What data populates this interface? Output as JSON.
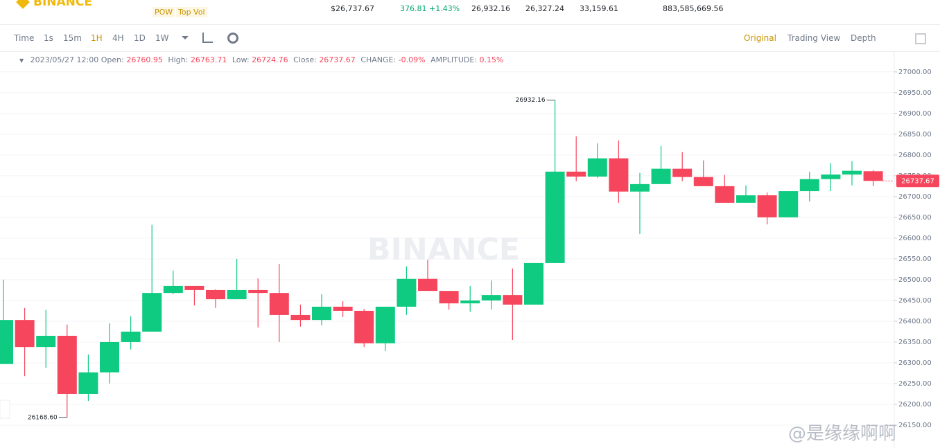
{
  "header": {
    "logo": "BINANCE",
    "tags": [
      "POW",
      "Top Vol"
    ],
    "stats": [
      "$26,737.67",
      "376.81 +1.43%",
      "26,932.16",
      "26,327.24",
      "33,159.61",
      "883,585,669.56"
    ]
  },
  "toolbar": {
    "intervals": [
      "Time",
      "1s",
      "15m",
      "1H",
      "4H",
      "1D",
      "1W"
    ],
    "views": [
      "Original",
      "Trading View",
      "Depth"
    ]
  },
  "legend": {
    "time": "2023/05/27 12:00",
    "labels": [
      "Open:",
      "High:",
      "Low:",
      "Close:",
      "CHANGE:",
      "AMPLITUDE:"
    ],
    "change": "-0.09%",
    "amplitude": "0.15%"
  },
  "watermark": "BINANCE",
  "credit": "@是缘缘啊啊",
  "chart_data": {
    "type": "candlestick",
    "categories": [
      null,
      null,
      null,
      null,
      null,
      null,
      null,
      null,
      null,
      null,
      null,
      null,
      null,
      null,
      null,
      null,
      null,
      null,
      null,
      null,
      null,
      null,
      null,
      null,
      null,
      null,
      null,
      null,
      null,
      null,
      null,
      null,
      null,
      null,
      null,
      null,
      null,
      null,
      null,
      null,
      null,
      null
    ],
    "open": [
      26297,
      26403,
      26338,
      26365,
      26225,
      26277,
      26350,
      26375,
      26468,
      26485,
      26475,
      26453,
      26475,
      26468,
      26415,
      26403,
      26435,
      26425,
      26347,
      26435,
      26502,
      26473,
      26443,
      26450,
      26463,
      26440,
      26540,
      26760,
      26748,
      26792,
      26712,
      26730,
      26767,
      26747,
      26725,
      26685,
      26703,
      26650,
      26713,
      26742,
      26753,
      26760.95
    ],
    "high": [
      26500,
      26432,
      26427,
      26392,
      26320,
      26395,
      26412,
      26632,
      26522,
      26485,
      26477,
      26550,
      26503,
      26538,
      26440,
      26465,
      26448,
      26430,
      26435,
      26532,
      26548,
      26473,
      26485,
      26498,
      26527,
      26540,
      26932.16,
      26845,
      26828,
      26835,
      26757,
      26822,
      26807,
      26787,
      26752,
      26727,
      26710,
      26713,
      26760,
      26780,
      26785,
      26763.71
    ],
    "low": [
      26297,
      26268,
      26288,
      26168.6,
      26208,
      26250,
      26332,
      26375,
      26465,
      26438,
      26432,
      26453,
      26385,
      26350,
      26387,
      26390,
      26410,
      26338,
      26328,
      26415,
      26473,
      26428,
      26423,
      26428,
      26355,
      26440,
      26540,
      26737,
      26745,
      26685,
      26610,
      26730,
      26737,
      26725,
      26685,
      26685,
      26633,
      26650,
      26688,
      26713,
      26727,
      26724.76
    ],
    "close": [
      26403,
      26338,
      26365,
      26225,
      26277,
      26350,
      26375,
      26468,
      26485,
      26475,
      26453,
      26475,
      26468,
      26415,
      26403,
      26435,
      26425,
      26347,
      26435,
      26502,
      26473,
      26443,
      26450,
      26463,
      26440,
      26540,
      26760,
      26748,
      26792,
      26712,
      26730,
      26767,
      26747,
      26725,
      26685,
      26703,
      26650,
      26713,
      26742,
      26753,
      26762,
      26737.67
    ],
    "up_color": "#0ecb81",
    "down_color": "#f6465d",
    "annotations": [
      "26932.16",
      "26168.60"
    ],
    "ylim": [
      26095,
      27048
    ],
    "yticks": [
      {
        "value": 26150,
        "label": "26150.00"
      },
      {
        "value": 26200,
        "label": "26200.00"
      },
      {
        "value": 26250,
        "label": "26250.00"
      },
      {
        "value": 26300,
        "label": "26300.00"
      },
      {
        "value": 26350,
        "label": "26350.00"
      },
      {
        "value": 26400,
        "label": "26400.00"
      },
      {
        "value": 26450,
        "label": "26450.00"
      },
      {
        "value": 26500,
        "label": "26500.00"
      },
      {
        "value": 26550,
        "label": "26550.00"
      },
      {
        "value": 26600,
        "label": "26600.00"
      },
      {
        "value": 26650,
        "label": "26650.00"
      },
      {
        "value": 26700,
        "label": "26700.00"
      },
      {
        "value": 26750,
        "label": "26750.00"
      },
      {
        "value": 26800,
        "label": "26800.00"
      },
      {
        "value": 26850,
        "label": "26850.00"
      },
      {
        "value": 26900,
        "label": "26900.00"
      },
      {
        "value": 26950,
        "label": "26950.00"
      },
      {
        "value": 27000,
        "label": "27000.00"
      }
    ],
    "grid": true
  }
}
